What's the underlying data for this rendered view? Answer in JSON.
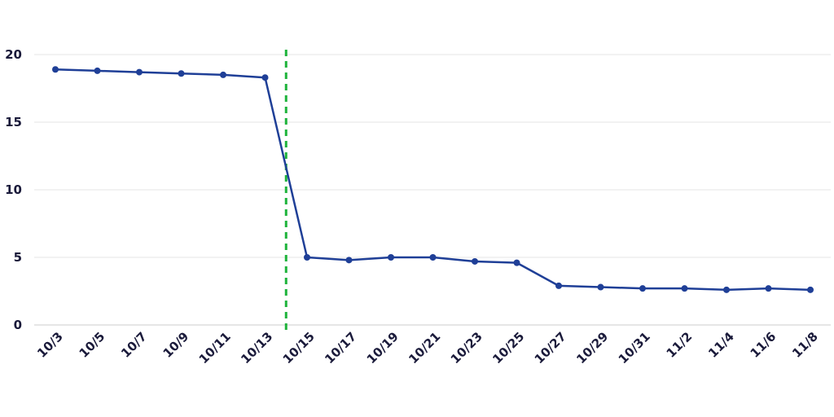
{
  "chart_data": {
    "type": "line",
    "title": "",
    "xlabel": "",
    "ylabel": "",
    "categories": [
      "10/3",
      "10/5",
      "10/7",
      "10/9",
      "10/11",
      "10/13",
      "10/15",
      "10/17",
      "10/19",
      "10/21",
      "10/23",
      "10/25",
      "10/27",
      "10/29",
      "10/31",
      "11/2",
      "11/4",
      "11/6",
      "11/8"
    ],
    "series": [
      {
        "values": [
          18.9,
          18.8,
          18.7,
          18.6,
          18.5,
          18.3,
          5.0,
          4.8,
          5.0,
          5.0,
          4.7,
          4.6,
          2.9,
          2.8,
          2.7,
          2.7,
          2.6,
          2.7,
          2.6
        ],
        "color": "#1f3f97"
      }
    ],
    "ylim": [
      0,
      20
    ],
    "yticks": [
      0,
      5,
      10,
      15,
      20
    ],
    "grid": true,
    "reference_line": {
      "between": [
        "10/13",
        "10/15"
      ],
      "color": "#1db33a",
      "style": "dashed"
    }
  }
}
